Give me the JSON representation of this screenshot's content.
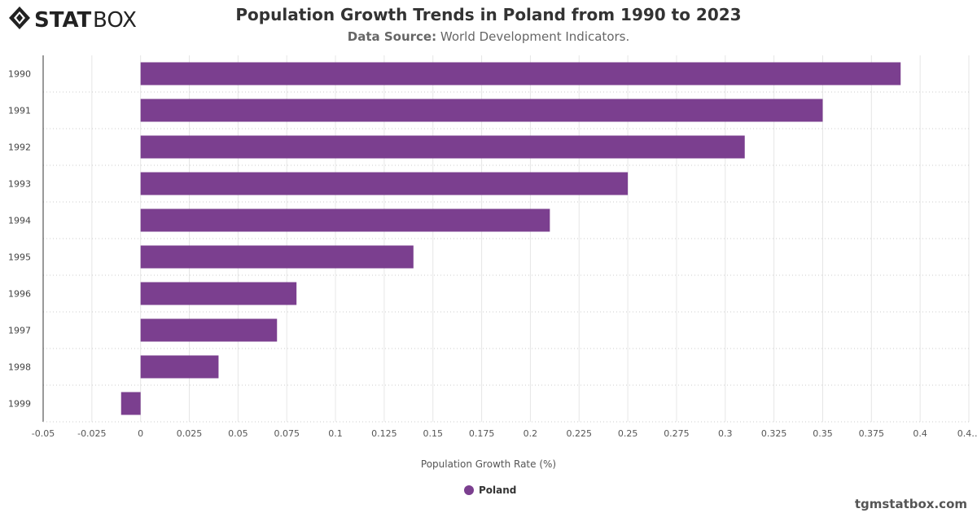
{
  "brand": {
    "logo_text": "STATBOX"
  },
  "header": {
    "title": "Population Growth Trends in Poland from 1990 to 2023",
    "source_label": "Data Source:",
    "source_value": "World Development Indicators."
  },
  "footer": {
    "credit": "tgmstatbox.com"
  },
  "colors": {
    "bar": "#7b3f8f",
    "grid": "#e6e6e6"
  },
  "chart_data": {
    "type": "bar",
    "orientation": "horizontal",
    "categories": [
      "1990",
      "1991",
      "1992",
      "1993",
      "1994",
      "1995",
      "1996",
      "1997",
      "1998",
      "1999"
    ],
    "series": [
      {
        "name": "Poland",
        "values": [
          0.39,
          0.35,
          0.31,
          0.25,
          0.21,
          0.14,
          0.08,
          0.07,
          0.04,
          -0.01
        ]
      }
    ],
    "xlabel": "Population Growth Rate (%)",
    "xlim": [
      -0.05,
      0.425
    ],
    "xticks": [
      "-0.05",
      "-0.025",
      "0",
      "0.025",
      "0.05",
      "0.075",
      "0.1",
      "0.125",
      "0.15",
      "0.175",
      "0.2",
      "0.225",
      "0.25",
      "0.275",
      "0.3",
      "0.325",
      "0.35",
      "0.375",
      "0.4",
      "0.4…"
    ],
    "grid": true,
    "legend": "bottom"
  }
}
